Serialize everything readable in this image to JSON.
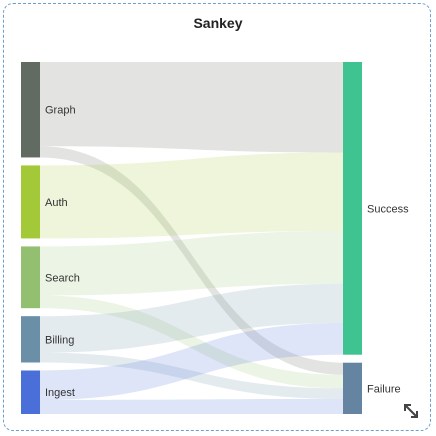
{
  "chart_data": {
    "type": "sankey",
    "title": "Sankey",
    "nodes": [
      {
        "name": "Graph",
        "color": "#626b61",
        "column": "left"
      },
      {
        "name": "Auth",
        "color": "#a3c938",
        "column": "left"
      },
      {
        "name": "Search",
        "color": "#93c070",
        "column": "left"
      },
      {
        "name": "Billing",
        "color": "#6b8fa6",
        "column": "left"
      },
      {
        "name": "Ingest",
        "color": "#4a6fd8",
        "column": "left"
      },
      {
        "name": "Success",
        "color": "#3fc391",
        "column": "right"
      },
      {
        "name": "Failure",
        "color": "#6584a1",
        "column": "right"
      }
    ],
    "links": [
      {
        "source": "Graph",
        "target": "Success",
        "value": 60
      },
      {
        "source": "Graph",
        "target": "Failure",
        "value": 8
      },
      {
        "source": "Auth",
        "target": "Success",
        "value": 52
      },
      {
        "source": "Search",
        "target": "Success",
        "value": 35
      },
      {
        "source": "Search",
        "target": "Failure",
        "value": 9
      },
      {
        "source": "Billing",
        "target": "Success",
        "value": 26
      },
      {
        "source": "Billing",
        "target": "Failure",
        "value": 7
      },
      {
        "source": "Ingest",
        "target": "Success",
        "value": 21
      },
      {
        "source": "Ingest",
        "target": "Failure",
        "value": 10
      }
    ]
  },
  "icons": {
    "resize": "resize-diagonal-icon"
  }
}
